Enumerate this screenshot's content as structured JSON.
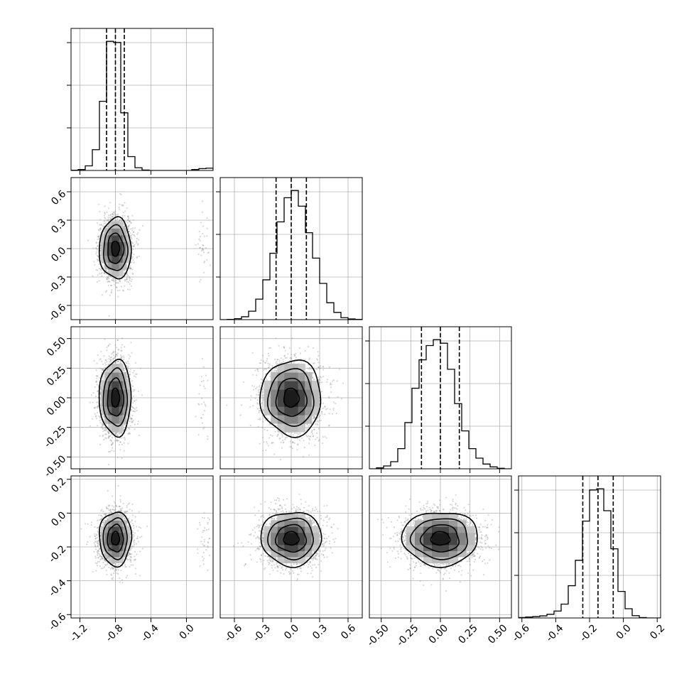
{
  "chart_data": {
    "type": "corner",
    "grid": true,
    "parameters": [
      {
        "index": 0,
        "range": [
          -1.3,
          0.3
        ],
        "ticks": [
          "-1.2",
          "-0.8",
          "-0.4",
          "0.0"
        ],
        "tick_values": [
          -1.2,
          -0.8,
          -0.4,
          0.0
        ],
        "median": -0.8,
        "sigma": 0.09,
        "secondary_mode": 0.2,
        "secondary_weight": 0.01,
        "quantiles": [
          -0.9,
          -0.8,
          -0.7
        ]
      },
      {
        "index": 1,
        "range": [
          -0.75,
          0.75
        ],
        "ticks": [
          "-0.6",
          "-0.3",
          "0.0",
          "0.3",
          "0.6"
        ],
        "tick_values": [
          -0.6,
          -0.3,
          0.0,
          0.3,
          0.6
        ],
        "median": 0.0,
        "sigma": 0.16,
        "quantiles": [
          -0.16,
          0.0,
          0.16
        ]
      },
      {
        "index": 2,
        "range": [
          -0.6,
          0.6
        ],
        "ticks": [
          "-0.50",
          "-0.25",
          "0.00",
          "0.25",
          "0.50"
        ],
        "tick_values": [
          -0.5,
          -0.25,
          0.0,
          0.25,
          0.5
        ],
        "median": 0.0,
        "sigma": 0.16,
        "quantiles": [
          -0.16,
          0.0,
          0.16
        ]
      },
      {
        "index": 3,
        "range": [
          -0.62,
          0.22
        ],
        "ticks": [
          "-0.6",
          "-0.4",
          "-0.2",
          "0.0",
          "0.2"
        ],
        "tick_values": [
          -0.6,
          -0.4,
          -0.2,
          0.0,
          0.2
        ],
        "median": -0.15,
        "sigma": 0.08,
        "quantiles": [
          -0.24,
          -0.15,
          -0.06
        ]
      }
    ],
    "histograms": [
      {
        "param": 0,
        "bin_edges": [
          -1.3,
          -1.22,
          -1.14,
          -1.06,
          -0.98,
          -0.9,
          -0.82,
          -0.74,
          -0.66,
          -0.58,
          -0.5,
          -0.42,
          -0.34,
          -0.26,
          -0.18,
          -0.1,
          -0.02,
          0.06,
          0.14,
          0.22,
          0.3
        ],
        "counts": [
          1,
          4,
          20,
          90,
          300,
          560,
          555,
          250,
          60,
          12,
          2,
          0,
          0,
          0,
          0,
          0,
          0,
          4,
          8,
          10
        ]
      },
      {
        "param": 1,
        "bin_edges": [
          -0.75,
          -0.675,
          -0.6,
          -0.525,
          -0.45,
          -0.375,
          -0.3,
          -0.225,
          -0.15,
          -0.075,
          0.0,
          0.075,
          0.15,
          0.225,
          0.3,
          0.375,
          0.45,
          0.525,
          0.6,
          0.675,
          0.75
        ],
        "counts": [
          0,
          1,
          4,
          12,
          35,
          85,
          165,
          275,
          405,
          505,
          535,
          470,
          360,
          255,
          150,
          70,
          30,
          8,
          3,
          1
        ]
      },
      {
        "param": 2,
        "bin_edges": [
          -0.6,
          -0.54,
          -0.48,
          -0.42,
          -0.36,
          -0.3,
          -0.24,
          -0.18,
          -0.12,
          -0.06,
          0.0,
          0.06,
          0.12,
          0.18,
          0.24,
          0.3,
          0.36,
          0.42,
          0.48,
          0.54,
          0.6
        ],
        "counts": [
          0,
          4,
          12,
          30,
          85,
          195,
          340,
          460,
          520,
          545,
          530,
          420,
          275,
          160,
          85,
          45,
          20,
          8,
          2,
          0
        ]
      },
      {
        "param": 3,
        "bin_edges": [
          -0.62,
          -0.578,
          -0.536,
          -0.494,
          -0.452,
          -0.41,
          -0.368,
          -0.326,
          -0.284,
          -0.242,
          -0.2,
          -0.158,
          -0.116,
          -0.074,
          -0.032,
          0.01,
          0.052,
          0.094,
          0.136,
          0.178,
          0.22
        ],
        "counts": [
          2,
          4,
          6,
          9,
          16,
          30,
          60,
          140,
          250,
          420,
          555,
          560,
          465,
          300,
          115,
          40,
          10,
          2,
          0,
          0
        ]
      }
    ],
    "scatter_seed": 7,
    "scatter_points_per_panel": 2200
  }
}
